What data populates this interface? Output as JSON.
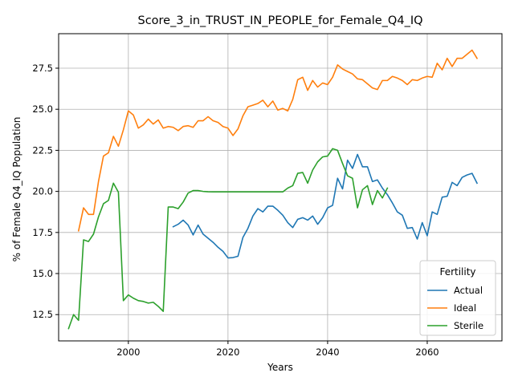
{
  "chart_data": {
    "type": "line",
    "title": "Score_3_in_TRUST_IN_PEOPLE_for_Female_Q4_IQ",
    "xlabel": "Years",
    "ylabel": "% of Female Q4_IQ Population",
    "xlim": [
      1986,
      2075
    ],
    "ylim": [
      10.9,
      29.6
    ],
    "xticks": [
      2000,
      2020,
      2040,
      2060
    ],
    "yticks": [
      12.5,
      15.0,
      17.5,
      20.0,
      22.5,
      25.0,
      27.5
    ],
    "grid": true,
    "legend": {
      "title": "Fertility",
      "position": "bottom-right"
    },
    "series": [
      {
        "name": "Actual",
        "color": "#1f77b4",
        "points": [
          [
            2009,
            17.85
          ],
          [
            2010,
            18.0
          ],
          [
            2011,
            18.25
          ],
          [
            2012,
            17.95
          ],
          [
            2013,
            17.35
          ],
          [
            2014,
            17.95
          ],
          [
            2015,
            17.4
          ],
          [
            2016,
            17.15
          ],
          [
            2017,
            16.9
          ],
          [
            2018,
            16.6
          ],
          [
            2019,
            16.35
          ],
          [
            2020,
            15.95
          ],
          [
            2021,
            15.97
          ],
          [
            2022,
            16.05
          ],
          [
            2023,
            17.2
          ],
          [
            2024,
            17.75
          ],
          [
            2025,
            18.5
          ],
          [
            2026,
            18.95
          ],
          [
            2027,
            18.75
          ],
          [
            2028,
            19.1
          ],
          [
            2029,
            19.1
          ],
          [
            2030,
            18.85
          ],
          [
            2031,
            18.55
          ],
          [
            2032,
            18.1
          ],
          [
            2033,
            17.8
          ],
          [
            2034,
            18.3
          ],
          [
            2035,
            18.4
          ],
          [
            2036,
            18.25
          ],
          [
            2037,
            18.5
          ],
          [
            2038,
            18.0
          ],
          [
            2039,
            18.4
          ],
          [
            2040,
            19.0
          ],
          [
            2041,
            19.15
          ],
          [
            2042,
            20.8
          ],
          [
            2043,
            20.15
          ],
          [
            2044,
            21.9
          ],
          [
            2045,
            21.4
          ],
          [
            2046,
            22.25
          ],
          [
            2047,
            21.5
          ],
          [
            2048,
            21.5
          ],
          [
            2049,
            20.6
          ],
          [
            2050,
            20.7
          ],
          [
            2051,
            20.2
          ],
          [
            2052,
            19.8
          ],
          [
            2053,
            19.3
          ],
          [
            2054,
            18.75
          ],
          [
            2055,
            18.55
          ],
          [
            2056,
            17.75
          ],
          [
            2057,
            17.8
          ],
          [
            2058,
            17.1
          ],
          [
            2059,
            18.1
          ],
          [
            2060,
            17.3
          ],
          [
            2061,
            18.75
          ],
          [
            2062,
            18.6
          ],
          [
            2063,
            19.65
          ],
          [
            2064,
            19.7
          ],
          [
            2065,
            20.55
          ],
          [
            2066,
            20.35
          ],
          [
            2067,
            20.85
          ],
          [
            2068,
            21.0
          ],
          [
            2069,
            21.1
          ],
          [
            2070,
            20.5
          ]
        ]
      },
      {
        "name": "Ideal",
        "color": "#ff7f0e",
        "points": [
          [
            1990,
            17.6
          ],
          [
            1991,
            19.0
          ],
          [
            1992,
            18.6
          ],
          [
            1993,
            18.6
          ],
          [
            1994,
            20.6
          ],
          [
            1995,
            22.15
          ],
          [
            1996,
            22.35
          ],
          [
            1997,
            23.35
          ],
          [
            1998,
            22.75
          ],
          [
            1999,
            23.75
          ],
          [
            2000,
            24.9
          ],
          [
            2001,
            24.65
          ],
          [
            2002,
            23.85
          ],
          [
            2003,
            24.05
          ],
          [
            2004,
            24.4
          ],
          [
            2005,
            24.1
          ],
          [
            2006,
            24.35
          ],
          [
            2007,
            23.85
          ],
          [
            2008,
            23.95
          ],
          [
            2009,
            23.9
          ],
          [
            2010,
            23.7
          ],
          [
            2011,
            23.95
          ],
          [
            2012,
            24.0
          ],
          [
            2013,
            23.9
          ],
          [
            2014,
            24.3
          ],
          [
            2015,
            24.3
          ],
          [
            2016,
            24.55
          ],
          [
            2017,
            24.3
          ],
          [
            2018,
            24.2
          ],
          [
            2019,
            23.95
          ],
          [
            2020,
            23.85
          ],
          [
            2021,
            23.4
          ],
          [
            2022,
            23.8
          ],
          [
            2023,
            24.6
          ],
          [
            2024,
            25.15
          ],
          [
            2025,
            25.25
          ],
          [
            2026,
            25.35
          ],
          [
            2027,
            25.55
          ],
          [
            2028,
            25.15
          ],
          [
            2029,
            25.5
          ],
          [
            2030,
            24.95
          ],
          [
            2031,
            25.05
          ],
          [
            2032,
            24.9
          ],
          [
            2033,
            25.6
          ],
          [
            2034,
            26.8
          ],
          [
            2035,
            26.95
          ],
          [
            2036,
            26.15
          ],
          [
            2037,
            26.75
          ],
          [
            2038,
            26.35
          ],
          [
            2039,
            26.6
          ],
          [
            2040,
            26.5
          ],
          [
            2041,
            26.95
          ],
          [
            2042,
            27.7
          ],
          [
            2043,
            27.45
          ],
          [
            2044,
            27.3
          ],
          [
            2045,
            27.15
          ],
          [
            2046,
            26.85
          ],
          [
            2047,
            26.8
          ],
          [
            2048,
            26.55
          ],
          [
            2049,
            26.3
          ],
          [
            2050,
            26.2
          ],
          [
            2051,
            26.75
          ],
          [
            2052,
            26.75
          ],
          [
            2053,
            27.0
          ],
          [
            2054,
            26.9
          ],
          [
            2055,
            26.75
          ],
          [
            2056,
            26.5
          ],
          [
            2057,
            26.8
          ],
          [
            2058,
            26.75
          ],
          [
            2059,
            26.9
          ],
          [
            2060,
            27.0
          ],
          [
            2061,
            26.95
          ],
          [
            2062,
            27.8
          ],
          [
            2063,
            27.4
          ],
          [
            2064,
            28.1
          ],
          [
            2065,
            27.6
          ],
          [
            2066,
            28.1
          ],
          [
            2067,
            28.1
          ],
          [
            2068,
            28.35
          ],
          [
            2069,
            28.6
          ],
          [
            2070,
            28.1
          ]
        ]
      },
      {
        "name": "Sterile",
        "color": "#2ca02c",
        "points": [
          [
            1988,
            11.65
          ],
          [
            1989,
            12.5
          ],
          [
            1990,
            12.15
          ],
          [
            1991,
            17.05
          ],
          [
            1992,
            16.95
          ],
          [
            1993,
            17.4
          ],
          [
            1994,
            18.45
          ],
          [
            1995,
            19.25
          ],
          [
            1996,
            19.45
          ],
          [
            1997,
            20.5
          ],
          [
            1998,
            19.95
          ],
          [
            1999,
            13.35
          ],
          [
            2000,
            13.7
          ],
          [
            2001,
            13.5
          ],
          [
            2002,
            13.35
          ],
          [
            2003,
            13.3
          ],
          [
            2004,
            13.2
          ],
          [
            2005,
            13.25
          ],
          [
            2006,
            13.0
          ],
          [
            2007,
            12.7
          ],
          [
            2008,
            19.05
          ],
          [
            2009,
            19.05
          ],
          [
            2010,
            18.95
          ],
          [
            2011,
            19.35
          ],
          [
            2012,
            19.9
          ],
          [
            2013,
            20.05
          ],
          [
            2014,
            20.05
          ],
          [
            2015,
            20.0
          ],
          [
            2016,
            19.98
          ],
          [
            2017,
            19.97
          ],
          [
            2018,
            19.97
          ],
          [
            2019,
            19.97
          ],
          [
            2020,
            19.97
          ],
          [
            2021,
            19.97
          ],
          [
            2022,
            19.97
          ],
          [
            2023,
            19.97
          ],
          [
            2024,
            19.97
          ],
          [
            2025,
            19.97
          ],
          [
            2026,
            19.97
          ],
          [
            2027,
            19.97
          ],
          [
            2028,
            19.97
          ],
          [
            2029,
            19.97
          ],
          [
            2030,
            19.97
          ],
          [
            2031,
            19.97
          ],
          [
            2032,
            20.2
          ],
          [
            2033,
            20.35
          ],
          [
            2034,
            21.1
          ],
          [
            2035,
            21.15
          ],
          [
            2036,
            20.5
          ],
          [
            2037,
            21.3
          ],
          [
            2038,
            21.8
          ],
          [
            2039,
            22.1
          ],
          [
            2040,
            22.15
          ],
          [
            2041,
            22.6
          ],
          [
            2042,
            22.5
          ],
          [
            2043,
            21.7
          ],
          [
            2044,
            20.95
          ],
          [
            2045,
            20.8
          ],
          [
            2046,
            19.0
          ],
          [
            2047,
            20.1
          ],
          [
            2048,
            20.35
          ],
          [
            2049,
            19.2
          ],
          [
            2050,
            20.05
          ],
          [
            2051,
            19.6
          ],
          [
            2052,
            20.2
          ]
        ]
      }
    ]
  }
}
